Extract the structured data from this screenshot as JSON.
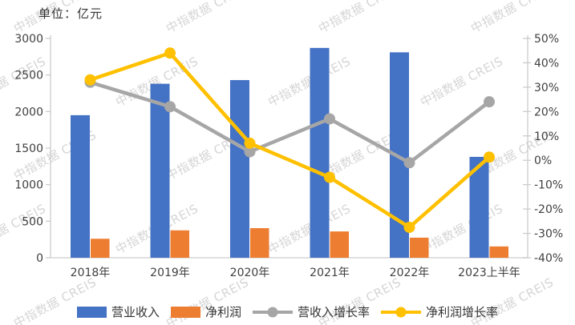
{
  "watermark": {
    "text": "中指数据 CREIS"
  },
  "chart_data": {
    "type": "bar",
    "subtype": "combo-bar-line-dual-axis",
    "title": "单位：亿元",
    "xlabel": "",
    "ylabel": "",
    "categories": [
      "2018年",
      "2019年",
      "2020年",
      "2021年",
      "2022年",
      "2023上半年"
    ],
    "series": [
      {
        "name": "营业收入",
        "kind": "bar",
        "axis": "left",
        "color": "#4472C4",
        "values": [
          1950,
          2380,
          2430,
          2870,
          2810,
          1380
        ]
      },
      {
        "name": "净利润",
        "kind": "bar",
        "axis": "left",
        "color": "#ED7D31",
        "values": [
          260,
          375,
          405,
          360,
          275,
          155
        ]
      },
      {
        "name": "营收入增长率",
        "kind": "line",
        "axis": "right",
        "color": "#A6A6A6",
        "values": [
          32,
          22,
          3.5,
          17,
          -1,
          24
        ]
      },
      {
        "name": "净利润增长率",
        "kind": "line",
        "axis": "right",
        "color": "#FFC000",
        "values": [
          33,
          44,
          7,
          -7,
          -27.5,
          1.3
        ]
      }
    ],
    "left_axis": {
      "min": 0,
      "max": 3000,
      "step": 500,
      "tick_labels": [
        "0",
        "500",
        "1000",
        "1500",
        "2000",
        "2500",
        "3000"
      ]
    },
    "right_axis": {
      "min": -40,
      "max": 50,
      "step": 10,
      "unit": "%",
      "tick_labels": [
        "-40%",
        "-30%",
        "-20%",
        "-10%",
        "0%",
        "10%",
        "20%",
        "30%",
        "40%",
        "50%"
      ]
    },
    "grid": false,
    "legend_position": "bottom",
    "axis_line_color": "#C8C8C8"
  }
}
